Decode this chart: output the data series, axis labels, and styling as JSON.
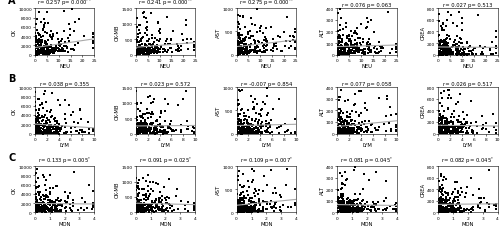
{
  "rows": [
    {
      "label": "A",
      "xlabel": "NEU",
      "xlim": [
        0,
        25
      ],
      "xticks": [
        0,
        5,
        10,
        15,
        20,
        25
      ],
      "panels": [
        {
          "ylabel": "CK",
          "ylim": [
            0,
            10000
          ],
          "yticks": [
            0,
            2000,
            4000,
            6000,
            8000,
            10000
          ],
          "r": 0.257,
          "p": "0.000",
          "sig": "**"
        },
        {
          "ylabel": "CK-MB",
          "ylim": [
            0,
            1500
          ],
          "yticks": [
            0,
            500,
            1000,
            1500
          ],
          "r": 0.241,
          "p": "0.000",
          "sig": "**"
        },
        {
          "ylabel": "AST",
          "ylim": [
            0,
            1000
          ],
          "yticks": [
            0,
            500,
            1000
          ],
          "r": 0.275,
          "p": "0.000",
          "sig": "**"
        },
        {
          "ylabel": "ALT",
          "ylim": [
            0,
            400
          ],
          "yticks": [
            0,
            100,
            200,
            300,
            400
          ],
          "r": 0.076,
          "p": "0.063",
          "sig": ""
        },
        {
          "ylabel": "CREA",
          "ylim": [
            0,
            800
          ],
          "yticks": [
            0,
            200,
            400,
            600,
            800
          ],
          "r": 0.027,
          "p": "0.513",
          "sig": ""
        }
      ]
    },
    {
      "label": "B",
      "xlabel": "LYM",
      "xlim": [
        0,
        10
      ],
      "xticks": [
        0,
        2,
        4,
        6,
        8,
        10
      ],
      "panels": [
        {
          "ylabel": "CK",
          "ylim": [
            0,
            10000
          ],
          "yticks": [
            0,
            2000,
            4000,
            6000,
            8000,
            10000
          ],
          "r": 0.038,
          "p": "0.355",
          "sig": ""
        },
        {
          "ylabel": "CK-MB",
          "ylim": [
            0,
            1500
          ],
          "yticks": [
            0,
            500,
            1000,
            1500
          ],
          "r": 0.023,
          "p": "0.572",
          "sig": ""
        },
        {
          "ylabel": "AST",
          "ylim": [
            0,
            1000
          ],
          "yticks": [
            0,
            500,
            1000
          ],
          "r": -0.007,
          "p": "0.854",
          "sig": ""
        },
        {
          "ylabel": "ALT",
          "ylim": [
            0,
            400
          ],
          "yticks": [
            0,
            100,
            200,
            300,
            400
          ],
          "r": 0.077,
          "p": "0.058",
          "sig": ""
        },
        {
          "ylabel": "CREA",
          "ylim": [
            0,
            800
          ],
          "yticks": [
            0,
            200,
            400,
            600,
            800
          ],
          "r": 0.026,
          "p": "0.517",
          "sig": ""
        }
      ]
    },
    {
      "label": "C",
      "xlabel": "MON",
      "xlim": [
        0,
        4
      ],
      "xticks": [
        0,
        1,
        2,
        3,
        4
      ],
      "panels": [
        {
          "ylabel": "CK",
          "ylim": [
            0,
            10000
          ],
          "yticks": [
            0,
            2000,
            4000,
            6000,
            8000,
            10000
          ],
          "r": 0.133,
          "p": "0.005",
          "sig": "*"
        },
        {
          "ylabel": "CK-MB",
          "ylim": [
            0,
            1500
          ],
          "yticks": [
            0,
            500,
            1000,
            1500
          ],
          "r": 0.091,
          "p": "0.025",
          "sig": "*"
        },
        {
          "ylabel": "AST",
          "ylim": [
            0,
            1000
          ],
          "yticks": [
            0,
            500,
            1000
          ],
          "r": 0.109,
          "p": "0.007",
          "sig": "*"
        },
        {
          "ylabel": "ALT",
          "ylim": [
            0,
            400
          ],
          "yticks": [
            0,
            100,
            200,
            300,
            400
          ],
          "r": 0.081,
          "p": "0.045",
          "sig": "*"
        },
        {
          "ylabel": "CREA",
          "ylim": [
            0,
            800
          ],
          "yticks": [
            0,
            200,
            400,
            600,
            800
          ],
          "r": 0.082,
          "p": "0.045",
          "sig": "*"
        }
      ]
    }
  ],
  "scatter_color": "#000000",
  "line_color": "#aaaaaa",
  "marker_size": 1.5,
  "background_color": "#ffffff",
  "n_points": 250
}
